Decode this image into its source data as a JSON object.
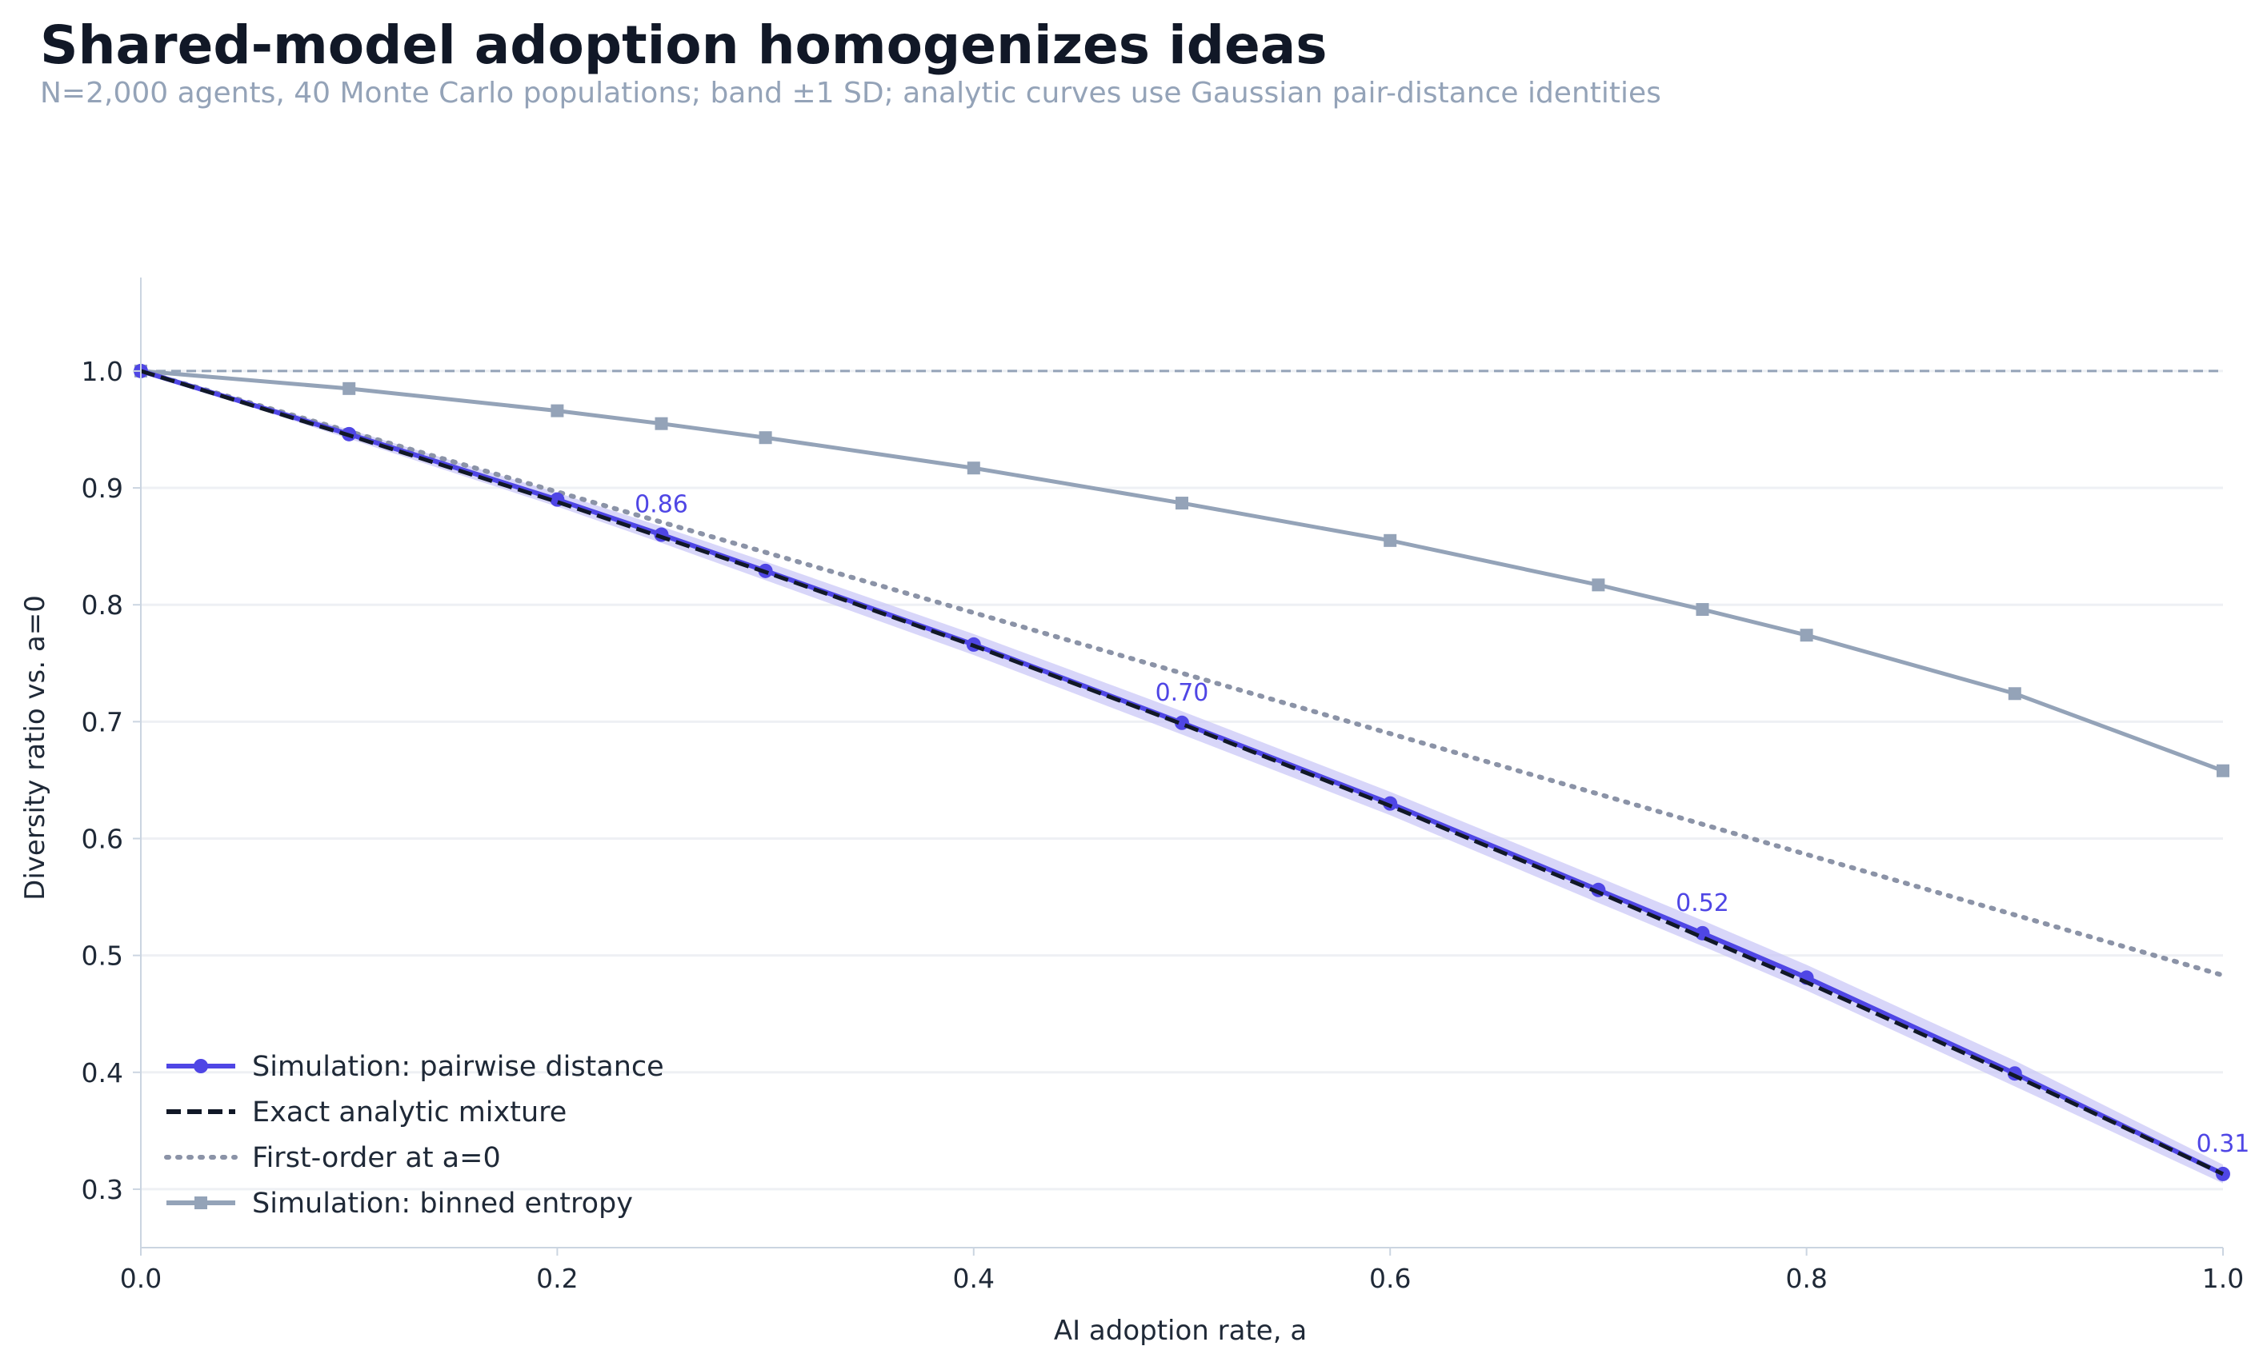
{
  "chart_data": {
    "type": "line",
    "title": "Shared-model adoption homogenizes ideas",
    "subtitle": "N=2,000 agents, 40 Monte Carlo populations; band ±1 SD; analytic curves use Gaussian pair-distance identities",
    "xlabel": "AI adoption rate, a",
    "ylabel": "Diversity ratio vs. a=0",
    "xlim": [
      0,
      1.0
    ],
    "ylim": [
      0.25,
      1.08
    ],
    "x_ticks": [
      "0.0",
      "0.2",
      "0.4",
      "0.6",
      "0.8",
      "1.0"
    ],
    "y_ticks": [
      "0.3",
      "0.4",
      "0.5",
      "0.6",
      "0.7",
      "0.8",
      "0.9",
      "1.0"
    ],
    "grid": "horizontal",
    "legend_position": "lower-left",
    "reference_line": {
      "y": 1.0,
      "style": "dashed",
      "color": "#94a3b8"
    },
    "series": [
      {
        "name": "Simulation: pairwise distance",
        "style": "solid-marker-circle",
        "color": "#4f46e5",
        "band_color": "#c7c4f7",
        "x": [
          0.0,
          0.1,
          0.2,
          0.25,
          0.3,
          0.4,
          0.5,
          0.6,
          0.7,
          0.75,
          0.8,
          0.9,
          1.0
        ],
        "values": [
          1.0,
          0.946,
          0.89,
          0.86,
          0.829,
          0.766,
          0.699,
          0.63,
          0.556,
          0.519,
          0.481,
          0.399,
          0.313
        ],
        "band_sd": [
          0.0,
          0.004,
          0.006,
          0.007,
          0.008,
          0.009,
          0.01,
          0.01,
          0.011,
          0.011,
          0.011,
          0.011,
          0.008
        ]
      },
      {
        "name": "Exact analytic mixture",
        "style": "dashed",
        "color": "#111827",
        "x": [
          0.0,
          0.1,
          0.2,
          0.3,
          0.4,
          0.5,
          0.6,
          0.7,
          0.8,
          0.9,
          1.0
        ],
        "values": [
          1.0,
          0.945,
          0.888,
          0.828,
          0.765,
          0.698,
          0.628,
          0.554,
          0.477,
          0.397,
          0.313
        ]
      },
      {
        "name": "First-order at a=0",
        "style": "dotted",
        "color": "#8b93a7",
        "x": [
          0.0,
          1.0
        ],
        "values": [
          1.0,
          0.483
        ]
      },
      {
        "name": "Simulation: binned entropy",
        "style": "solid-marker-square",
        "color": "#94a3b8",
        "x": [
          0.0,
          0.1,
          0.2,
          0.25,
          0.3,
          0.4,
          0.5,
          0.6,
          0.7,
          0.75,
          0.8,
          0.9,
          1.0
        ],
        "values": [
          1.0,
          0.985,
          0.966,
          0.955,
          0.943,
          0.917,
          0.887,
          0.855,
          0.817,
          0.796,
          0.774,
          0.724,
          0.658
        ]
      }
    ],
    "annotations": [
      {
        "x": 0.25,
        "y": 0.86,
        "text": "0.86"
      },
      {
        "x": 0.5,
        "y": 0.699,
        "text": "0.70"
      },
      {
        "x": 0.75,
        "y": 0.519,
        "text": "0.52"
      },
      {
        "x": 1.0,
        "y": 0.313,
        "text": "0.31"
      }
    ]
  }
}
